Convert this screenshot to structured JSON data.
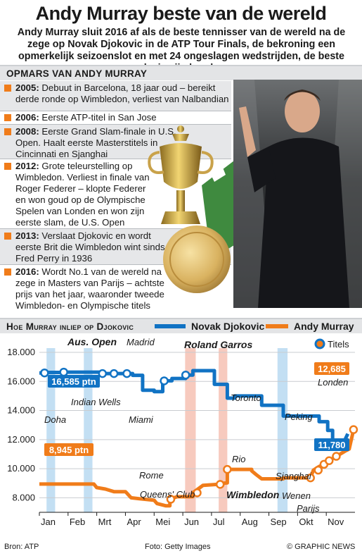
{
  "header": {
    "title": "Andy Murray beste van de wereld",
    "intro": "Andy Murray sluit 2016 af als de beste tennisser van de wereld na de zege op Novak Djokovic in de ATP Tour Finals, de bekroning een opmerkelijk seizoenslot en met 24 ongeslagen wedstrijden, de beste reeks in zijn loopbaan"
  },
  "timeline": {
    "heading": "Opmars van Andy Murray",
    "items": [
      {
        "year": "2005:",
        "text": "Debuut in Barcelona, 18 jaar oud – bereikt derde ronde op Wimbledon, verliest van Nalbandian"
      },
      {
        "year": "2006:",
        "text": "Eerste ATP-titel in San Jose"
      },
      {
        "year": "2008:",
        "text": "Eerste Grand Slam-finale in U.S. Open. Haalt eerste Masterstitels in Cincinnati en Sjanghai"
      },
      {
        "year": "2012:",
        "text": "Grote teleurstelling op Wimbledon. Verliest in finale van Roger Federer – klopte Federer en won goud op de Olympische Spelen van Londen en won zijn eerste slam, de U.S. Open"
      },
      {
        "year": "2013:",
        "text": "Verslaat Djokovic en wordt eerste Brit die Wimbledon wint sinds Fred Perry in 1936"
      },
      {
        "year": "2016:",
        "text": "Wordt No.1 van de wereld na zege in Masters van Parijs – achtste prijs van het jaar, waaronder tweede Wimbledon- en Olympische titels"
      }
    ]
  },
  "chart_section": {
    "heading": "Hoe Murray inliep op Djokovic",
    "legend_titles": "Titels"
  },
  "footer": {
    "source": "Bron: ATP",
    "photo": "Foto: Getty Images",
    "credit": "© GRAPHIC NEWS"
  },
  "colors": {
    "djokovic": "#1173c4",
    "murray": "#f07c1a",
    "shade_blue": "#b9d9f1",
    "shade_orange": "#f6c1b3"
  },
  "chart_data": {
    "type": "line",
    "ylim": [
      7000,
      18000
    ],
    "yticks": [
      "18.000",
      "16.000",
      "14.000",
      "12.000",
      "10.000",
      "8.000"
    ],
    "ytick_values": [
      18000,
      16000,
      14000,
      12000,
      10000,
      8000
    ],
    "months": [
      "Jan",
      "Feb",
      "Mrt",
      "Apr",
      "Mei",
      "Jun",
      "Jul",
      "Aug",
      "Sep",
      "Okt",
      "Nov"
    ],
    "x_domain": [
      0,
      11
    ],
    "series": [
      {
        "name": "Novak Djokovic",
        "color": "#1173c4",
        "points": [
          [
            0,
            16585
          ],
          [
            0.25,
            16585
          ],
          [
            0.25,
            16620
          ],
          [
            0.85,
            16620
          ],
          [
            0.85,
            16640
          ],
          [
            2.2,
            16640
          ],
          [
            2.2,
            16540
          ],
          [
            3.25,
            16540
          ],
          [
            3.25,
            16420
          ],
          [
            3.6,
            16420
          ],
          [
            3.6,
            15400
          ],
          [
            4.0,
            15400
          ],
          [
            4.0,
            15300
          ],
          [
            4.3,
            15300
          ],
          [
            4.3,
            16040
          ],
          [
            4.62,
            16040
          ],
          [
            4.62,
            16200
          ],
          [
            5.1,
            16200
          ],
          [
            5.1,
            16440
          ],
          [
            5.35,
            16440
          ],
          [
            5.35,
            16740
          ],
          [
            6.1,
            16740
          ],
          [
            6.1,
            15800
          ],
          [
            6.55,
            15800
          ],
          [
            6.55,
            14850
          ],
          [
            6.8,
            14850
          ],
          [
            6.8,
            15000
          ],
          [
            7.75,
            15000
          ],
          [
            7.75,
            14360
          ],
          [
            8.5,
            14360
          ],
          [
            8.5,
            13620
          ],
          [
            9.75,
            13620
          ],
          [
            9.75,
            13230
          ],
          [
            10.05,
            13230
          ],
          [
            10.05,
            12630
          ],
          [
            10.22,
            12630
          ],
          [
            10.22,
            11780
          ],
          [
            10.6,
            11780
          ],
          [
            10.75,
            12400
          ]
        ],
        "markers": [
          0.18,
          0.85,
          2.2,
          2.6,
          3.05,
          4.35,
          5.1
        ]
      },
      {
        "name": "Andy Murray",
        "color": "#f07c1a",
        "points": [
          [
            0,
            8945
          ],
          [
            1.9,
            8945
          ],
          [
            2.0,
            8700
          ],
          [
            2.3,
            8600
          ],
          [
            2.6,
            8420
          ],
          [
            3.0,
            8420
          ],
          [
            3.2,
            8000
          ],
          [
            3.5,
            7930
          ],
          [
            4.0,
            7830
          ],
          [
            4.1,
            7600
          ],
          [
            4.4,
            7450
          ],
          [
            4.55,
            7450
          ],
          [
            4.55,
            7900
          ],
          [
            4.8,
            8070
          ],
          [
            5.35,
            8070
          ],
          [
            5.35,
            8340
          ],
          [
            5.7,
            8850
          ],
          [
            6.2,
            8920
          ],
          [
            6.4,
            8920
          ],
          [
            6.4,
            9000
          ],
          [
            6.55,
            9020
          ],
          [
            6.55,
            9950
          ],
          [
            7.4,
            9950
          ],
          [
            7.4,
            9850
          ],
          [
            7.55,
            9600
          ],
          [
            7.75,
            9300
          ],
          [
            8.0,
            9300
          ],
          [
            8.1,
            9300
          ],
          [
            8.5,
            9300
          ],
          [
            8.5,
            9370
          ],
          [
            9.0,
            9370
          ],
          [
            9.2,
            9370
          ],
          [
            9.45,
            9370
          ],
          [
            9.55,
            9900
          ],
          [
            9.75,
            10150
          ],
          [
            9.92,
            10300
          ],
          [
            10.1,
            10550
          ],
          [
            10.35,
            10850
          ],
          [
            10.65,
            11200
          ],
          [
            10.8,
            11350
          ],
          [
            10.95,
            12685
          ]
        ],
        "markers": [
          4.58,
          5.5,
          6.3,
          6.55,
          9.45,
          9.72,
          9.92,
          10.1,
          10.35,
          10.95
        ]
      }
    ],
    "shaded_bands": [
      {
        "from": 0.25,
        "to": 0.55,
        "color": "blue"
      },
      {
        "from": 1.55,
        "to": 1.85,
        "color": "blue"
      },
      {
        "from": 5.08,
        "to": 5.45,
        "color": "orange"
      },
      {
        "from": 6.25,
        "to": 6.55,
        "color": "orange"
      },
      {
        "from": 8.3,
        "to": 8.65,
        "color": "blue"
      }
    ],
    "callouts": [
      {
        "text": "16,585 ptn",
        "series": "Novak Djokovic"
      },
      {
        "text": "8,945 ptn",
        "series": "Andy Murray"
      },
      {
        "text": "12,685",
        "series": "Andy Murray"
      },
      {
        "text": "11,780",
        "series": "Novak Djokovic"
      }
    ],
    "annotations": [
      {
        "text": "Aus. Open",
        "bold": true,
        "italic": true
      },
      {
        "text": "Madrid",
        "bold": false,
        "italic": true
      },
      {
        "text": "Roland Garros",
        "bold": true,
        "italic": true
      },
      {
        "text": "Doha",
        "bold": false,
        "italic": true
      },
      {
        "text": "Indian Wells",
        "bold": false,
        "italic": true
      },
      {
        "text": "Miami",
        "bold": false,
        "italic": true
      },
      {
        "text": "Toronto",
        "bold": false,
        "italic": true
      },
      {
        "text": "Londen",
        "bold": false,
        "italic": true
      },
      {
        "text": "Peking",
        "bold": false,
        "italic": true
      },
      {
        "text": "Rio",
        "bold": false,
        "italic": true
      },
      {
        "text": "Rome",
        "bold": false,
        "italic": true
      },
      {
        "text": "Queens' Club",
        "bold": false,
        "italic": true
      },
      {
        "text": "Wimbledon",
        "bold": true,
        "italic": true
      },
      {
        "text": "Sjanghai",
        "bold": false,
        "italic": true
      },
      {
        "text": "Wenen",
        "bold": false,
        "italic": true
      },
      {
        "text": "Parijs",
        "bold": false,
        "italic": true
      }
    ],
    "grid": true,
    "legend_position": "top-right"
  }
}
